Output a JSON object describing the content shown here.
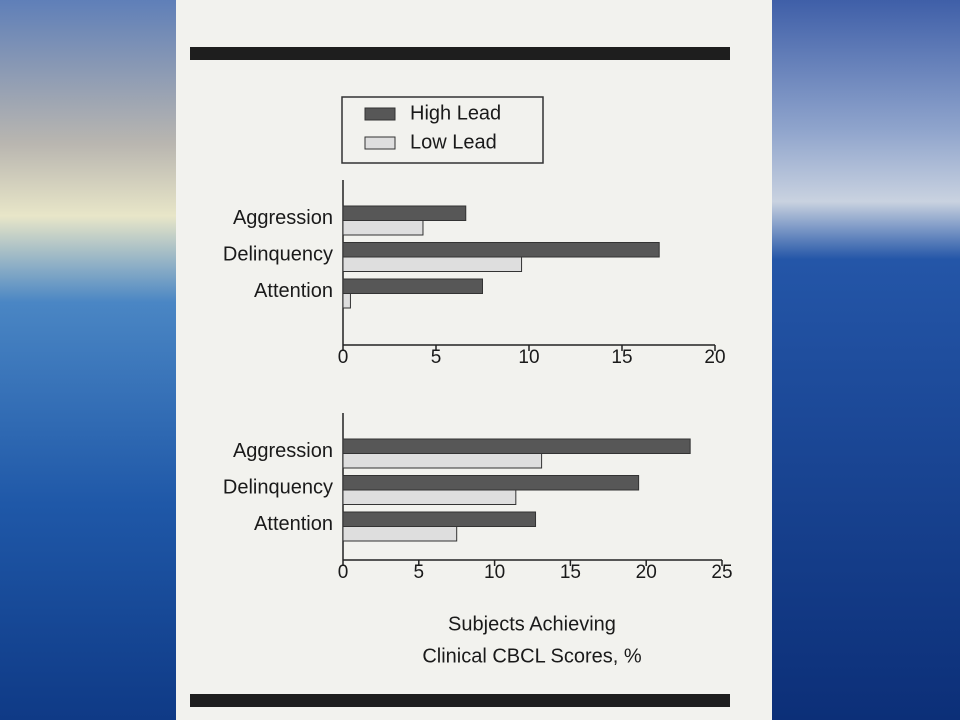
{
  "chart_data": [
    {
      "type": "bar",
      "orientation": "horizontal",
      "categories": [
        "Aggression",
        "Delinquency",
        "Attention"
      ],
      "series": [
        {
          "name": "High Lead",
          "color": "#575757",
          "values": [
            6.6,
            17.0,
            7.5
          ]
        },
        {
          "name": "Low Lead",
          "color": "#dedede",
          "values": [
            4.3,
            9.6,
            0.4
          ]
        }
      ],
      "xlim": [
        0,
        20
      ],
      "xticks": [
        0,
        5,
        10,
        15,
        20
      ],
      "legend": "top-left"
    },
    {
      "type": "bar",
      "orientation": "horizontal",
      "categories": [
        "Aggression",
        "Delinquency",
        "Attention"
      ],
      "series": [
        {
          "color": "#575757",
          "values": [
            22.9,
            19.5,
            12.7
          ]
        },
        {
          "color": "#dedede",
          "values": [
            13.1,
            11.4,
            7.5
          ]
        }
      ],
      "xlim": [
        0,
        25
      ],
      "xticks": [
        0,
        5,
        10,
        15,
        20,
        25
      ],
      "xlabel": [
        "Subjects Achieving",
        "Clinical CBCL Scores, %"
      ]
    }
  ]
}
